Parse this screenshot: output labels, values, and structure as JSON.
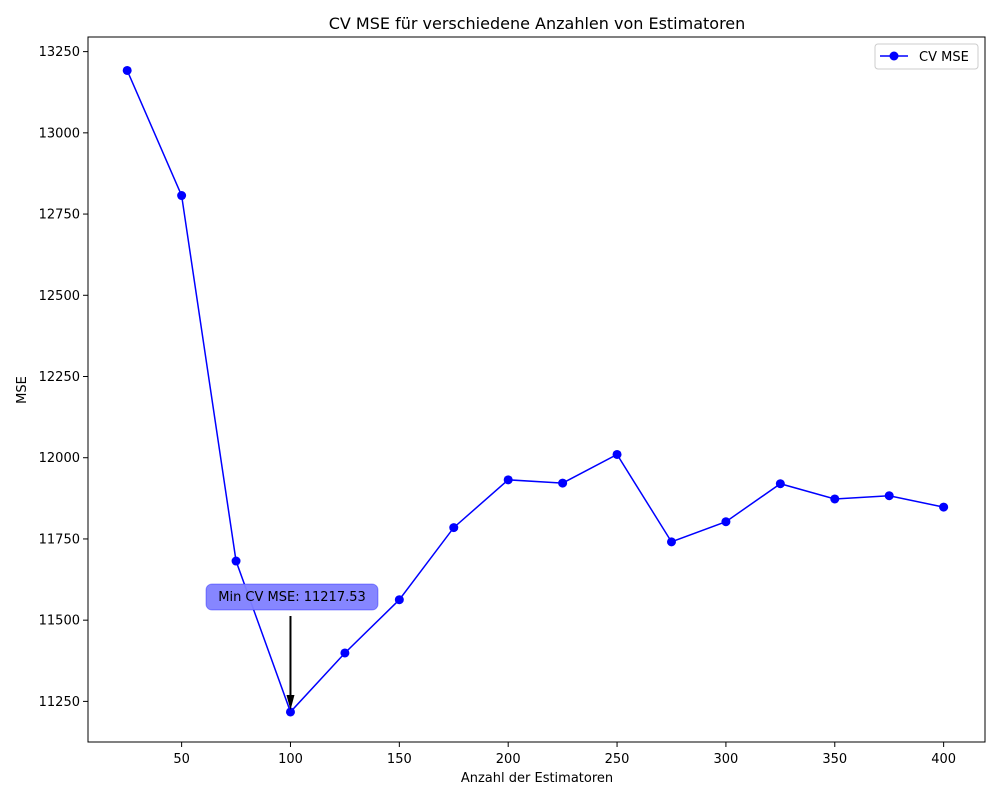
{
  "chart_data": {
    "type": "line",
    "title": "CV MSE für verschiedene Anzahlen von Estimatoren",
    "xlabel": "Anzahl der Estimatoren",
    "ylabel": "MSE",
    "xlim": [
      7,
      419
    ],
    "ylim": [
      11125,
      13295
    ],
    "xticks": [
      50,
      100,
      150,
      200,
      250,
      300,
      350,
      400
    ],
    "yticks": [
      11250,
      11500,
      11750,
      12000,
      12250,
      12500,
      12750,
      13000,
      13250
    ],
    "grid": false,
    "legend_position": "top-right",
    "series": [
      {
        "name": "CV MSE",
        "color": "#0000ff",
        "marker": "circle",
        "x": [
          25,
          50,
          75,
          100,
          125,
          150,
          175,
          200,
          225,
          250,
          275,
          300,
          325,
          350,
          375,
          400
        ],
        "y": [
          13192,
          12807,
          11682,
          11217.53,
          11399,
          11563,
          11785,
          11932,
          11922,
          12010,
          11741,
          11803,
          11920,
          11873,
          11883,
          11848
        ]
      }
    ],
    "annotation": {
      "text": "Min CV MSE: 11217.53",
      "x": 100,
      "y": 11217.53,
      "box_color": "#8080ff"
    }
  }
}
